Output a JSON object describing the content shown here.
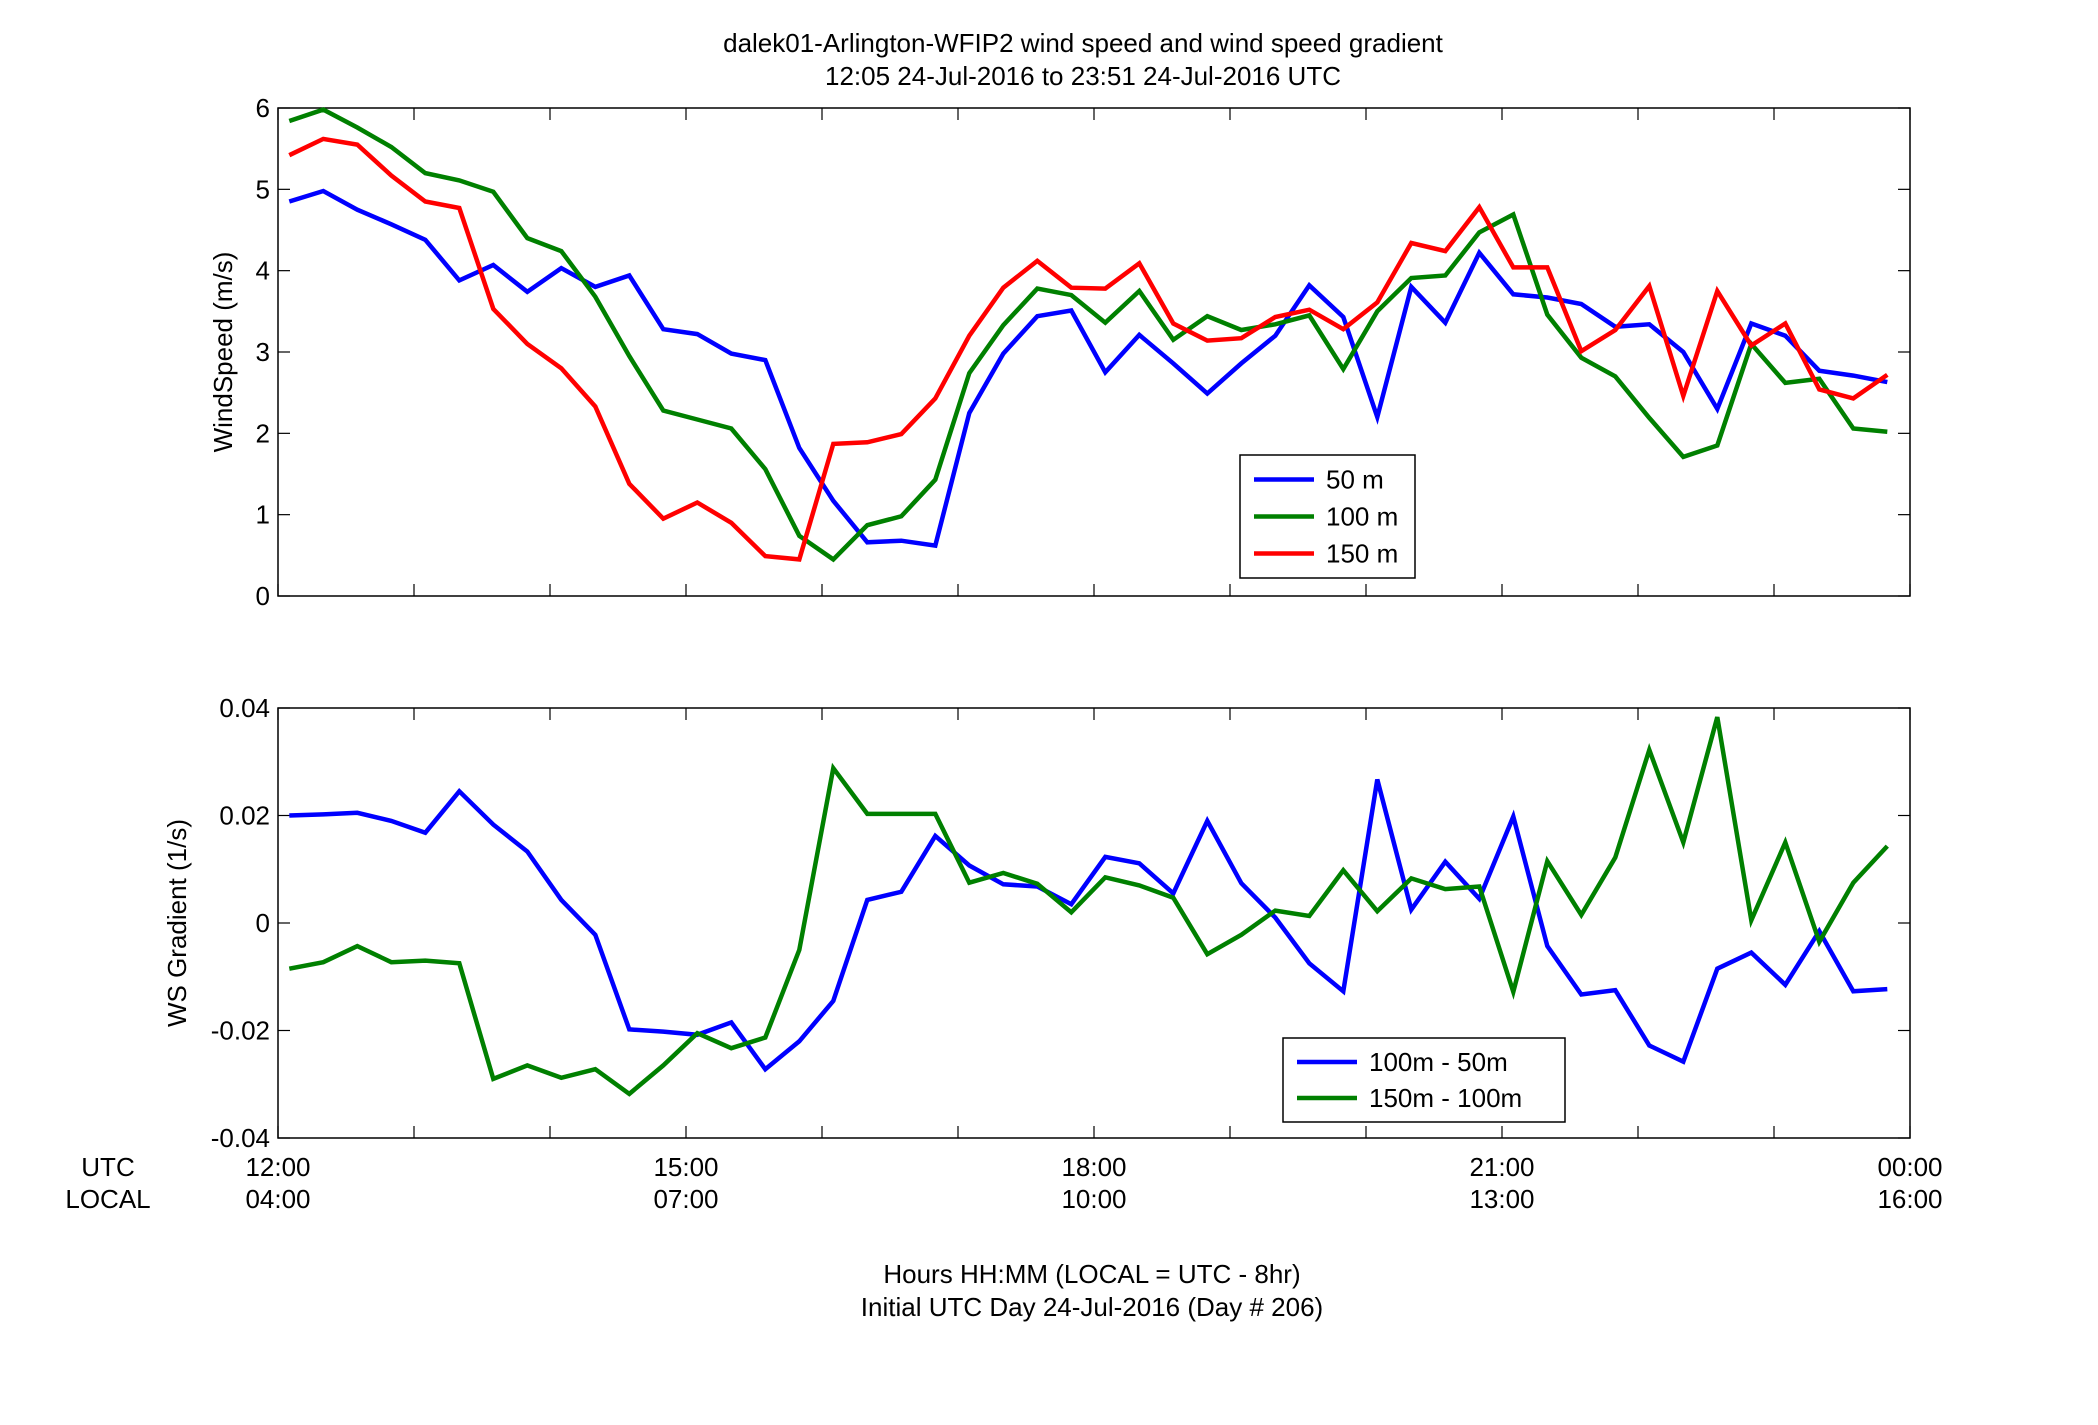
{
  "figure": {
    "title_line1": "dalek01-Arlington-WFIP2  wind speed and wind speed gradient",
    "title_line2": "12:05 24-Jul-2016 to 23:51 24-Jul-2016  UTC",
    "xlabel_line1": "Hours HH:MM  (LOCAL = UTC - 8hr)",
    "xlabel_line2": "Initial UTC Day 24-Jul-2016 (Day # 206)",
    "row_label_utc": "UTC",
    "row_label_local": "LOCAL"
  },
  "chart_data": [
    {
      "type": "line",
      "ylabel": "WindSpeed (m/s)",
      "x_unit": "hours UTC",
      "xlim": [
        12,
        24
      ],
      "ylim": [
        0,
        6
      ],
      "yticks": [
        0,
        1,
        2,
        3,
        4,
        5,
        6
      ],
      "ytick_labels": [
        "0",
        "1",
        "2",
        "3",
        "4",
        "5",
        "6"
      ],
      "xticks": [
        12,
        15,
        18,
        21,
        24
      ],
      "xtick_labels_utc": [
        "12:00",
        "15:00",
        "18:00",
        "21:00",
        "00:00"
      ],
      "xtick_labels_local": [
        "04:00",
        "07:00",
        "10:00",
        "13:00",
        "16:00"
      ],
      "grid": false,
      "legend_position": "lower-right-center",
      "x": [
        12.083,
        12.333,
        12.583,
        12.833,
        13.083,
        13.333,
        13.583,
        13.833,
        14.083,
        14.333,
        14.583,
        14.833,
        15.083,
        15.333,
        15.583,
        15.833,
        16.083,
        16.333,
        16.583,
        16.833,
        17.083,
        17.333,
        17.583,
        17.833,
        18.083,
        18.333,
        18.583,
        18.833,
        19.083,
        19.333,
        19.583,
        19.833,
        20.083,
        20.333,
        20.583,
        20.833,
        21.083,
        21.333,
        21.583,
        21.833,
        22.083,
        22.333,
        22.583,
        22.833,
        23.083,
        23.333,
        23.583,
        23.833
      ],
      "series": [
        {
          "name": "50 m",
          "color": "#0000ff",
          "values": [
            4.85,
            4.98,
            4.75,
            4.57,
            4.38,
            3.88,
            4.07,
            3.74,
            4.03,
            3.8,
            3.94,
            3.28,
            3.22,
            2.98,
            2.9,
            1.82,
            1.17,
            0.66,
            0.68,
            0.62,
            2.25,
            2.98,
            3.44,
            3.51,
            2.75,
            3.21,
            2.86,
            2.49,
            2.86,
            3.2,
            3.82,
            3.43,
            2.2,
            3.8,
            3.36,
            4.22,
            3.71,
            3.67,
            3.59,
            3.31,
            3.34,
            3.0,
            2.3,
            3.35,
            3.2,
            2.77,
            2.71,
            2.63
          ]
        },
        {
          "name": "100 m",
          "color": "#008000",
          "values": [
            5.84,
            5.98,
            5.76,
            5.52,
            5.2,
            5.11,
            4.97,
            4.4,
            4.24,
            3.68,
            2.95,
            2.28,
            2.17,
            2.06,
            1.56,
            0.74,
            0.45,
            0.87,
            0.98,
            1.43,
            2.74,
            3.33,
            3.78,
            3.7,
            3.36,
            3.75,
            3.15,
            3.44,
            3.27,
            3.34,
            3.45,
            2.79,
            3.5,
            3.91,
            3.94,
            4.47,
            4.69,
            3.46,
            2.93,
            2.7,
            2.19,
            1.71,
            1.85,
            3.1,
            2.62,
            2.67,
            2.06,
            2.02
          ]
        },
        {
          "name": "150 m",
          "color": "#ff0000",
          "values": [
            5.42,
            5.62,
            5.55,
            5.17,
            4.85,
            4.77,
            3.53,
            3.1,
            2.8,
            2.33,
            1.38,
            0.95,
            1.15,
            0.9,
            0.49,
            0.45,
            1.87,
            1.89,
            1.99,
            2.43,
            3.2,
            3.79,
            4.12,
            3.79,
            3.78,
            4.09,
            3.35,
            3.14,
            3.17,
            3.43,
            3.52,
            3.28,
            3.61,
            4.34,
            4.24,
            4.78,
            4.04,
            4.04,
            3.01,
            3.27,
            3.81,
            2.46,
            3.75,
            3.08,
            3.35,
            2.54,
            2.43,
            2.72
          ]
        }
      ]
    },
    {
      "type": "line",
      "ylabel": "WS Gradient (1/s)",
      "x_unit": "hours UTC",
      "xlim": [
        12,
        24
      ],
      "ylim": [
        -0.04,
        0.04
      ],
      "yticks": [
        -0.04,
        -0.02,
        0,
        0.02,
        0.04
      ],
      "ytick_labels": [
        "-0.04",
        "-0.02",
        "0",
        "0.02",
        "0.04"
      ],
      "xticks": [
        12,
        15,
        18,
        21,
        24
      ],
      "xtick_labels_utc": [
        "12:00",
        "15:00",
        "18:00",
        "21:00",
        "00:00"
      ],
      "xtick_labels_local": [
        "04:00",
        "07:00",
        "10:00",
        "13:00",
        "16:00"
      ],
      "grid": false,
      "legend_position": "lower-right-center",
      "x": [
        12.083,
        12.333,
        12.583,
        12.833,
        13.083,
        13.333,
        13.583,
        13.833,
        14.083,
        14.333,
        14.583,
        14.833,
        15.083,
        15.333,
        15.583,
        15.833,
        16.083,
        16.333,
        16.583,
        16.833,
        17.083,
        17.333,
        17.583,
        17.833,
        18.083,
        18.333,
        18.583,
        18.833,
        19.083,
        19.333,
        19.583,
        19.833,
        20.083,
        20.333,
        20.583,
        20.833,
        21.083,
        21.333,
        21.583,
        21.833,
        22.083,
        22.333,
        22.583,
        22.833,
        23.083,
        23.333,
        23.583,
        23.833
      ],
      "series": [
        {
          "name": "100m - 50m",
          "color": "#0000ff",
          "values": [
            0.02,
            0.0202,
            0.0205,
            0.019,
            0.0168,
            0.0245,
            0.0183,
            0.0133,
            0.0043,
            -0.0022,
            -0.0198,
            -0.0202,
            -0.0208,
            -0.0185,
            -0.0272,
            -0.022,
            -0.0145,
            0.0043,
            0.0058,
            0.0162,
            0.0107,
            0.0072,
            0.0068,
            0.0035,
            0.0123,
            0.0111,
            0.0055,
            0.019,
            0.0074,
            0.001,
            -0.0075,
            -0.0127,
            0.0267,
            0.0025,
            0.0114,
            0.0045,
            0.0198,
            -0.0043,
            -0.0133,
            -0.0125,
            -0.0228,
            -0.0258,
            -0.0085,
            -0.0055,
            -0.0115,
            -0.0015,
            -0.0127,
            -0.0123
          ]
        },
        {
          "name": "150m - 100m",
          "color": "#008000",
          "values": [
            -0.0085,
            -0.0073,
            -0.0043,
            -0.0073,
            -0.007,
            -0.0075,
            -0.029,
            -0.0265,
            -0.0288,
            -0.0272,
            -0.0318,
            -0.0265,
            -0.0205,
            -0.0233,
            -0.0213,
            -0.005,
            0.0288,
            0.0203,
            0.0203,
            0.0203,
            0.0075,
            0.0093,
            0.0073,
            0.002,
            0.0085,
            0.007,
            0.0047,
            -0.0058,
            -0.0022,
            0.0023,
            0.0013,
            0.0098,
            0.0022,
            0.0083,
            0.0063,
            0.0068,
            -0.0128,
            0.0115,
            0.0015,
            0.0122,
            0.0322,
            0.015,
            0.0383,
            0.0005,
            0.015,
            -0.0035,
            0.0075,
            0.0143
          ]
        }
      ]
    }
  ]
}
